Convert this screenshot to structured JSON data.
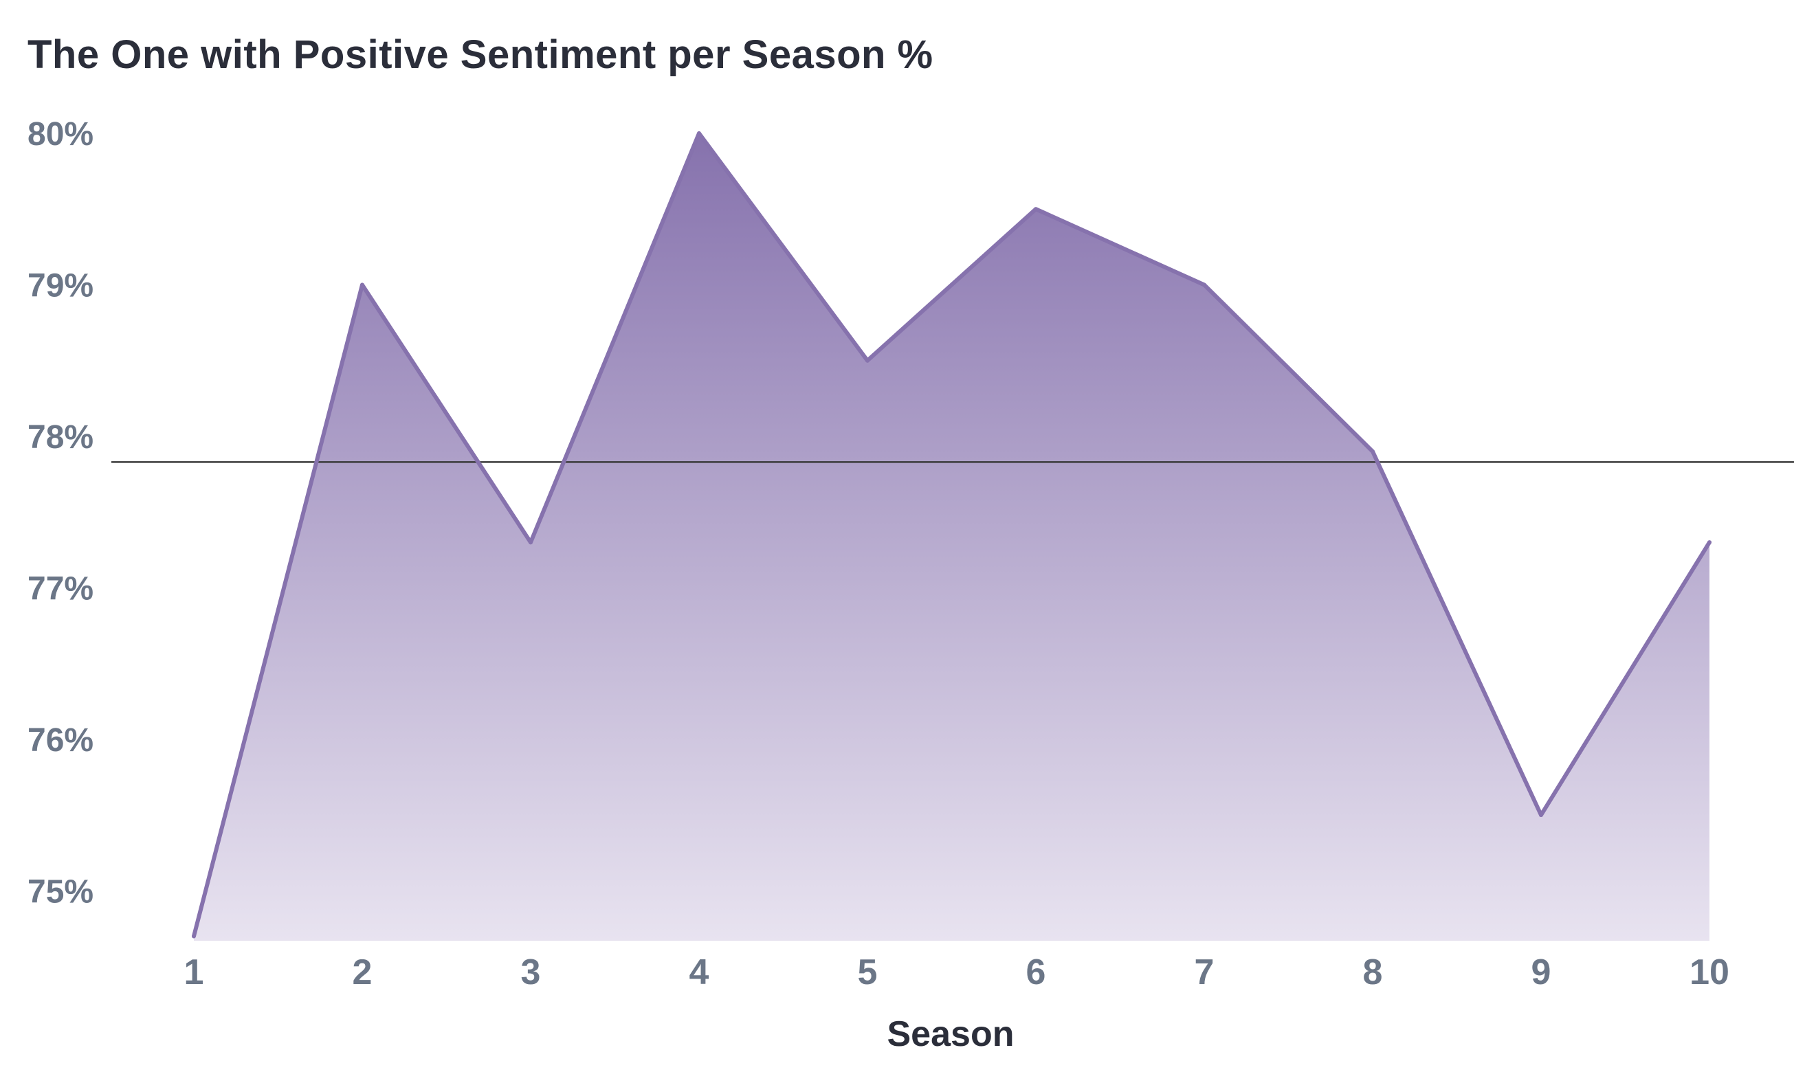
{
  "chart_data": {
    "type": "area",
    "title": "The One with Positive Sentiment per Season %",
    "xlabel": "Season",
    "ylabel": "",
    "x": [
      1,
      2,
      3,
      4,
      5,
      6,
      7,
      8,
      9,
      10
    ],
    "x_tick_labels": [
      "1",
      "2",
      "3",
      "4",
      "5",
      "6",
      "7",
      "8",
      "9",
      "10"
    ],
    "series": [
      {
        "values": [
          74.7,
          79.0,
          77.3,
          80.0,
          78.5,
          79.5,
          79.0,
          77.9,
          75.5,
          77.3
        ]
      }
    ],
    "reference_line": {
      "value": 77.83
    },
    "ylim": [
      74.67,
      80.05
    ],
    "y_ticks": [
      75,
      76,
      77,
      78,
      79,
      80
    ],
    "y_tick_labels": [
      "75%",
      "76%",
      "77%",
      "78%",
      "79%",
      "80%"
    ],
    "grid": false,
    "legend": "none",
    "colors": {
      "line": "#8672ad",
      "fill_top": "#8672ad",
      "fill_bottom": "#e8e3f0",
      "reference_line": "#3a3a3a",
      "tick_text": "#6b7687",
      "title_text": "#2b2e3a"
    }
  }
}
